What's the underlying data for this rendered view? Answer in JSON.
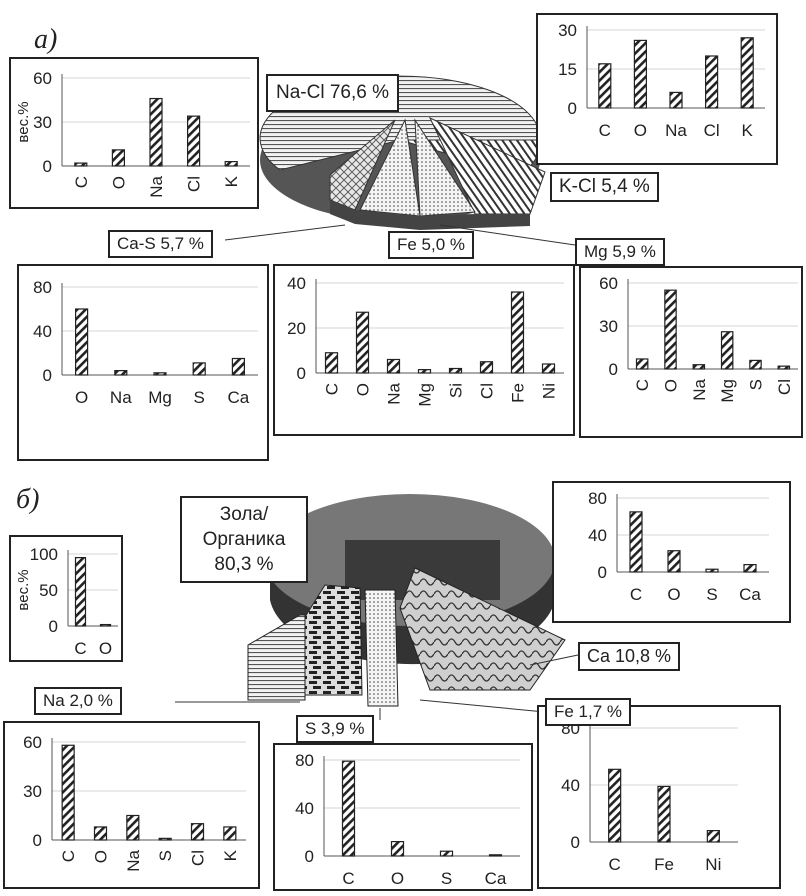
{
  "panels": [
    {
      "letter": "a)",
      "pie": {
        "slices": [
          {
            "label": "Na-Cl 76,6 %",
            "value": 76.6,
            "pattern": "hlines"
          },
          {
            "label": "K-Cl 5,4 %",
            "value": 5.4,
            "pattern": "diag"
          },
          {
            "label": "Mg 5,9 %",
            "value": 5.9,
            "pattern": "dots"
          },
          {
            "label": "Fe 5,0 %",
            "value": 5.0,
            "pattern": "dots"
          },
          {
            "label": "Ca-S 5,7 %",
            "value": 5.7,
            "pattern": "weave"
          }
        ]
      }
    },
    {
      "letter": "б)",
      "pie": {
        "slices": [
          {
            "label": "Зола/\nОрганика\n80,3 %",
            "value": 80.3,
            "pattern": "solid"
          },
          {
            "label": "Ca 10,8 %",
            "value": 10.8,
            "pattern": "waves"
          },
          {
            "label": "Fe 1,7 %",
            "value": 1.7,
            "pattern": "dots"
          },
          {
            "label": "S 3,9 %",
            "value": 3.9,
            "pattern": "bricks"
          },
          {
            "label": "Na 2,0 %",
            "value": 2.0,
            "pattern": "hlines"
          }
        ]
      }
    }
  ],
  "chart_data": [
    {
      "type": "bar",
      "name": "a-NaCl",
      "categories": [
        "C",
        "O",
        "Na",
        "Cl",
        "K"
      ],
      "values": [
        2,
        11,
        46,
        34,
        3
      ],
      "ylabel": "вес.%",
      "ylim": [
        0,
        60
      ],
      "yticks": [
        0,
        30,
        60
      ]
    },
    {
      "type": "bar",
      "name": "a-KCl",
      "categories": [
        "C",
        "O",
        "Na",
        "Cl",
        "K"
      ],
      "values": [
        17,
        26,
        6,
        20,
        27
      ],
      "ylabel": "",
      "ylim": [
        0,
        30
      ],
      "yticks": [
        0,
        15,
        30
      ]
    },
    {
      "type": "bar",
      "name": "a-CaS",
      "categories": [
        "O",
        "Na",
        "Mg",
        "S",
        "Ca"
      ],
      "values": [
        60,
        4,
        2,
        11,
        15
      ],
      "ylabel": "",
      "ylim": [
        0,
        80
      ],
      "yticks": [
        0,
        40,
        80
      ]
    },
    {
      "type": "bar",
      "name": "a-Fe",
      "categories": [
        "C",
        "O",
        "Na",
        "Mg",
        "Si",
        "Cl",
        "Fe",
        "Ni"
      ],
      "values": [
        9,
        27,
        6,
        1.5,
        2,
        5,
        36,
        4
      ],
      "ylabel": "",
      "ylim": [
        0,
        40
      ],
      "yticks": [
        0,
        20,
        40
      ]
    },
    {
      "type": "bar",
      "name": "a-Mg",
      "categories": [
        "C",
        "O",
        "Na",
        "Mg",
        "S",
        "Cl"
      ],
      "values": [
        7,
        55,
        3,
        26,
        6,
        2
      ],
      "ylabel": "",
      "ylim": [
        0,
        60
      ],
      "yticks": [
        0,
        30,
        60
      ]
    },
    {
      "type": "bar",
      "name": "b-Ash",
      "categories": [
        "C",
        "O"
      ],
      "values": [
        95,
        2
      ],
      "ylabel": "вес.%",
      "ylim": [
        0,
        100
      ],
      "yticks": [
        0,
        50,
        100
      ]
    },
    {
      "type": "bar",
      "name": "b-Ca",
      "categories": [
        "C",
        "O",
        "S",
        "Ca"
      ],
      "values": [
        65,
        23,
        3,
        8
      ],
      "ylabel": "",
      "ylim": [
        0,
        80
      ],
      "yticks": [
        0,
        40,
        80
      ]
    },
    {
      "type": "bar",
      "name": "b-Na",
      "categories": [
        "C",
        "O",
        "Na",
        "S",
        "Cl",
        "K"
      ],
      "values": [
        58,
        8,
        15,
        1,
        10,
        8
      ],
      "ylabel": "",
      "ylim": [
        0,
        60
      ],
      "yticks": [
        0,
        30,
        60
      ]
    },
    {
      "type": "bar",
      "name": "b-S",
      "categories": [
        "C",
        "O",
        "S",
        "Ca"
      ],
      "values": [
        79,
        12,
        4,
        1
      ],
      "ylabel": "",
      "ylim": [
        0,
        80
      ],
      "yticks": [
        0,
        40,
        80
      ]
    },
    {
      "type": "bar",
      "name": "b-Fe",
      "categories": [
        "C",
        "Fe",
        "Ni"
      ],
      "values": [
        51,
        39,
        8
      ],
      "ylabel": "",
      "ylim": [
        0,
        80
      ],
      "yticks": [
        0,
        40,
        80
      ]
    }
  ]
}
